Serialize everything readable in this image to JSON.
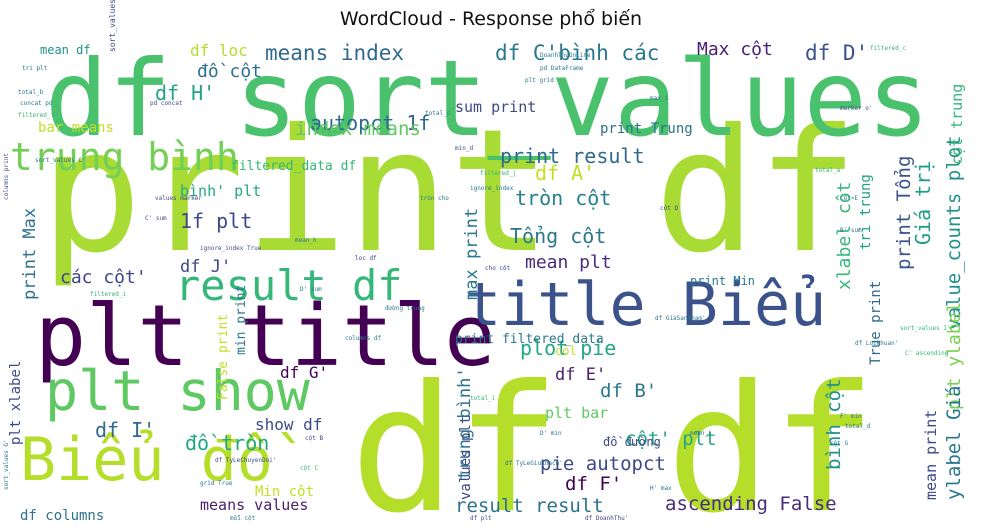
{
  "chart_data": {
    "type": "wordcloud",
    "title": "WordCloud - Response phổ biến",
    "colormap": "viridis",
    "background": "#ffffff",
    "words": [
      {
        "text": "print df",
        "weight": 1.0,
        "color": "#a8db34"
      },
      {
        "text": "df df",
        "weight": 0.98,
        "color": "#b5de2b"
      },
      {
        "text": "df sort_values",
        "weight": 0.88,
        "color": "#4ac16d"
      },
      {
        "text": "plt title",
        "weight": 0.66,
        "color": "#440154"
      },
      {
        "text": "title Biểu",
        "weight": 0.55,
        "color": "#3b528b"
      },
      {
        "text": "Biểu đồ",
        "weight": 0.5,
        "color": "#b5de2b"
      },
      {
        "text": "plt show",
        "weight": 0.48,
        "color": "#5ec962"
      },
      {
        "text": "result df",
        "weight": 0.36,
        "color": "#35b779"
      },
      {
        "text": "trung bình",
        "weight": 0.33,
        "color": "#73d056"
      },
      {
        "text": "means index",
        "weight": 0.18,
        "color": "#31688e"
      },
      {
        "text": "df C'bình các",
        "weight": 0.18,
        "color": "#2a788e"
      },
      {
        "text": "df D'",
        "weight": 0.18,
        "color": "#3b528b"
      },
      {
        "text": "Max cột",
        "weight": 0.15,
        "color": "#481f70"
      },
      {
        "text": "df loc",
        "weight": 0.12,
        "color": "#b5de2b"
      },
      {
        "text": "đồ cột",
        "weight": 0.14,
        "color": "#2c728e"
      },
      {
        "text": "df H'",
        "weight": 0.16,
        "color": "#20a386"
      },
      {
        "text": "mean df",
        "weight": 0.1,
        "color": "#21918c"
      },
      {
        "text": "autopct 1f",
        "weight": 0.17,
        "color": "#31688e"
      },
      {
        "text": "index means",
        "weight": 0.15,
        "color": "#5ec962"
      },
      {
        "text": "print result",
        "weight": 0.18,
        "color": "#31688e"
      },
      {
        "text": "print Tổng",
        "weight": 0.16,
        "color": "#3b528b"
      },
      {
        "text": "df A'",
        "weight": 0.17,
        "color": "#c2df23"
      },
      {
        "text": "tròn cột",
        "weight": 0.17,
        "color": "#27808e"
      },
      {
        "text": "Tổng cột",
        "weight": 0.17,
        "color": "#2a788e"
      },
      {
        "text": "xlabel cột",
        "weight": 0.15,
        "color": "#35b779"
      },
      {
        "text": "value_counts plot",
        "weight": 0.16,
        "color": "#21918c"
      },
      {
        "text": "Giá trị",
        "weight": 0.17,
        "color": "#1f9e89"
      },
      {
        "text": "plt ylabel",
        "weight": 0.16,
        "color": "#7ad151"
      },
      {
        "text": "cột trung",
        "weight": 0.12,
        "color": "#35b779"
      },
      {
        "text": "1f plt",
        "weight": 0.17,
        "color": "#3e4989"
      },
      {
        "text": "bình' plt",
        "weight": 0.11,
        "color": "#22a884"
      },
      {
        "text": "print Max",
        "weight": 0.13,
        "color": "#2c728e"
      },
      {
        "text": "df J'",
        "weight": 0.12,
        "color": "#404688"
      },
      {
        "text": "các cột'",
        "weight": 0.14,
        "color": "#414487"
      },
      {
        "text": "mean plt",
        "weight": 0.15,
        "color": "#472d7b"
      },
      {
        "text": "max print",
        "weight": 0.14,
        "color": "#2a788e"
      },
      {
        "text": "sum print",
        "weight": 0.12,
        "color": "#3e4989"
      },
      {
        "text": "bar means",
        "weight": 0.11,
        "color": "#c2df23"
      },
      {
        "text": "filtered_data df",
        "weight": 0.1,
        "color": "#35b779"
      },
      {
        "text": "print Trung",
        "weight": 0.1,
        "color": "#2c728e"
      },
      {
        "text": "True print",
        "weight": 0.1,
        "color": "#31688e"
      },
      {
        "text": "tri trung",
        "weight": 0.1,
        "color": "#20a386"
      },
      {
        "text": "plot pie",
        "weight": 0.15,
        "color": "#22a884"
      },
      {
        "text": "print filtered_data",
        "weight": 0.1,
        "color": "#2a788e"
      },
      {
        "text": "df E'",
        "weight": 0.13,
        "color": "#481f70"
      },
      {
        "text": "df B'",
        "weight": 0.15,
        "color": "#2a788e"
      },
      {
        "text": "plt bar",
        "weight": 0.12,
        "color": "#5ec962"
      },
      {
        "text": "cột' plt",
        "weight": 0.17,
        "color": "#22a884"
      },
      {
        "text": "pie autopct",
        "weight": 0.17,
        "color": "#3e4989"
      },
      {
        "text": "df F'",
        "weight": 0.15,
        "color": "#440154"
      },
      {
        "text": "result result",
        "weight": 0.17,
        "color": "#2c728e"
      },
      {
        "text": "ascending False",
        "weight": 0.17,
        "color": "#472d7b"
      },
      {
        "text": "bình cột",
        "weight": 0.17,
        "color": "#21918c"
      },
      {
        "text": "ylabel Giá",
        "weight": 0.16,
        "color": "#2a788e"
      },
      {
        "text": "mean print",
        "weight": 0.12,
        "color": "#3e4989"
      },
      {
        "text": "trung bình'",
        "weight": 0.14,
        "color": "#2c728e"
      },
      {
        "text": "values plt",
        "weight": 0.12,
        "color": "#3e4989"
      },
      {
        "text": "df G'",
        "weight": 0.12,
        "color": "#440154"
      },
      {
        "text": "df I'",
        "weight": 0.14,
        "color": "#31688e"
      },
      {
        "text": "đồ tròn",
        "weight": 0.17,
        "color": "#22a884"
      },
      {
        "text": "show df",
        "weight": 0.14,
        "color": "#3e4989"
      },
      {
        "text": "plt xlabel",
        "weight": 0.13,
        "color": "#3e4989"
      },
      {
        "text": "means values",
        "weight": 0.13,
        "color": "#481f70"
      },
      {
        "text": "df columns",
        "weight": 0.12,
        "color": "#2c728e"
      },
      {
        "text": "Min cột",
        "weight": 0.11,
        "color": "#c2df23"
      },
      {
        "text": "False print",
        "weight": 0.1,
        "color": "#c2df23"
      },
      {
        "text": "min print",
        "weight": 0.1,
        "color": "#2a788e"
      },
      {
        "text": "print Min",
        "weight": 0.09,
        "color": "#2a788e"
      },
      {
        "text": "col",
        "weight": 0.09,
        "color": "#c2df23"
      },
      {
        "text": "đồ đường",
        "weight": 0.09,
        "color": "#3e4989"
      },
      {
        "text": "sort_values",
        "weight": 0.06,
        "color": "#3e4989"
      },
      {
        "text": "pd DataFrame",
        "weight": 0.05,
        "color": "#2a788e"
      },
      {
        "text": "DoanhThuOnline",
        "weight": 0.05,
        "color": "#2a788e"
      },
      {
        "text": "concat pd",
        "weight": 0.05,
        "color": "#2a788e"
      },
      {
        "text": "pd concat",
        "weight": 0.05,
        "color": "#3e4989"
      },
      {
        "text": "filtered_f",
        "weight": 0.05,
        "color": "#35b779"
      },
      {
        "text": "total_b",
        "weight": 0.05,
        "color": "#2a788e"
      },
      {
        "text": "tri plt",
        "weight": 0.05,
        "color": "#2c728e"
      },
      {
        "text": "filtered_c",
        "weight": 0.05,
        "color": "#35b779"
      },
      {
        "text": "plt grid",
        "weight": 0.05,
        "color": "#2a788e"
      },
      {
        "text": "total_c",
        "weight": 0.05,
        "color": "#2a788e"
      },
      {
        "text": "max_i",
        "weight": 0.05,
        "color": "#2c728e"
      },
      {
        "text": "marker o'",
        "weight": 0.05,
        "color": "#3e4989"
      },
      {
        "text": "filtered_j",
        "weight": 0.05,
        "color": "#35b779"
      },
      {
        "text": "ignore_index",
        "weight": 0.05,
        "color": "#2a788e"
      },
      {
        "text": "ignore_index True",
        "weight": 0.05,
        "color": "#3e4989"
      },
      {
        "text": "values marker",
        "weight": 0.05,
        "color": "#3e4989"
      },
      {
        "text": "mean_h",
        "weight": 0.05,
        "color": "#2a788e"
      },
      {
        "text": "loc df",
        "weight": 0.05,
        "color": "#3e4989"
      },
      {
        "text": "cho cột",
        "weight": 0.05,
        "color": "#3e4989"
      },
      {
        "text": "đường trung",
        "weight": 0.05,
        "color": "#2a788e"
      },
      {
        "text": "filtered_i",
        "weight": 0.05,
        "color": "#35b779"
      },
      {
        "text": "columns df",
        "weight": 0.05,
        "color": "#2a788e"
      },
      {
        "text": "df GiaSanPham'",
        "weight": 0.05,
        "color": "#2a788e"
      },
      {
        "text": "sort_values I'",
        "weight": 0.05,
        "color": "#35b779"
      },
      {
        "text": "C' ascending",
        "weight": 0.05,
        "color": "#35b779"
      },
      {
        "text": "df LoiNhuan'",
        "weight": 0.05,
        "color": "#2a788e"
      },
      {
        "text": "total_i",
        "weight": 0.05,
        "color": "#35b779"
      },
      {
        "text": "mean_i",
        "weight": 0.05,
        "color": "#2c728e"
      },
      {
        "text": "D' min",
        "weight": 0.05,
        "color": "#2c728e"
      },
      {
        "text": "df TyLeChuyenDoi'",
        "weight": 0.05,
        "color": "#3e4989"
      },
      {
        "text": "grid True",
        "weight": 0.05,
        "color": "#2a788e"
      },
      {
        "text": "mỗi cột",
        "weight": 0.05,
        "color": "#2a788e"
      },
      {
        "text": "df DoanhThu'",
        "weight": 0.05,
        "color": "#3e4989"
      },
      {
        "text": "H' max",
        "weight": 0.05,
        "color": "#2c728e"
      },
      {
        "text": "df plt",
        "weight": 0.05,
        "color": "#3e4989"
      },
      {
        "text": "total_d",
        "weight": 0.05,
        "color": "#2a788e"
      },
      {
        "text": "cột G",
        "weight": 0.05,
        "color": "#2a788e"
      },
      {
        "text": "F' min",
        "weight": 0.05,
        "color": "#2c728e"
      },
      {
        "text": "cột B",
        "weight": 0.05,
        "color": "#3e4989"
      },
      {
        "text": "cột C",
        "weight": 0.05,
        "color": "#35b779"
      },
      {
        "text": "sort_values G'",
        "weight": 0.05,
        "color": "#2a788e"
      },
      {
        "text": "columns print",
        "weight": 0.05,
        "color": "#3e4989"
      },
      {
        "text": "sort_values C'",
        "weight": 0.05,
        "color": "#2c728e"
      },
      {
        "text": "tròn cho",
        "weight": 0.05,
        "color": "#2a788e"
      },
      {
        "text": "B' sum",
        "weight": 0.05,
        "color": "#2a788e"
      },
      {
        "text": "cột E",
        "weight": 0.05,
        "color": "#2a788e"
      },
      {
        "text": "cột D",
        "weight": 0.05,
        "color": "#3e4989"
      },
      {
        "text": "total_a",
        "weight": 0.05,
        "color": "#35b779"
      },
      {
        "text": "D' sum",
        "weight": 0.05,
        "color": "#2a788e"
      },
      {
        "text": "C' sum",
        "weight": 0.05,
        "color": "#3e4989"
      },
      {
        "text": "min_d",
        "weight": 0.05,
        "color": "#3e4989"
      },
      {
        "text": "df TyLeGiuKhach'",
        "weight": 0.05,
        "color": "#2a788e"
      },
      {
        "text": "df SoDonHang'",
        "weight": 0.05,
        "color": "#2a788e"
      }
    ]
  }
}
